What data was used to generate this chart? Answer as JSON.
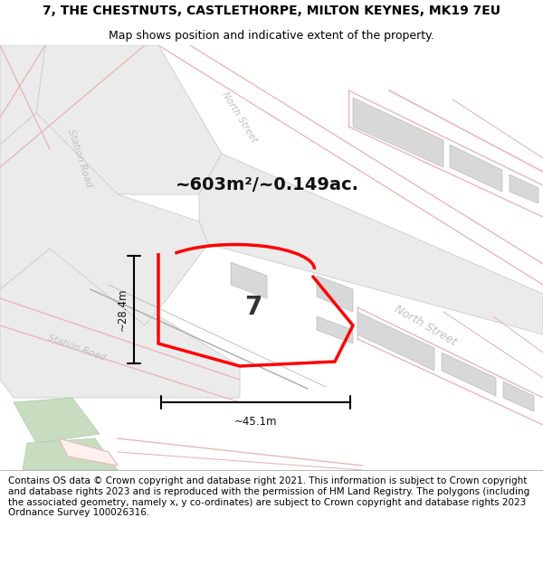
{
  "title_line1": "7, THE CHESTNUTS, CASTLETHORPE, MILTON KEYNES, MK19 7EU",
  "title_line2": "Map shows position and indicative extent of the property.",
  "footer_text": "Contains OS data © Crown copyright and database right 2021. This information is subject to Crown copyright and database rights 2023 and is reproduced with the permission of HM Land Registry. The polygons (including the associated geometry, namely x, y co-ordinates) are subject to Crown copyright and database rights 2023 Ordnance Survey 100026316.",
  "area_label": "~603m²/~0.149ac.",
  "number_label": "7",
  "width_label": "~45.1m",
  "height_label": "~28.4m",
  "map_bg": "#f9f9f9",
  "road_fill": "#ebebeb",
  "road_edge": "#cccccc",
  "pink_line": "#e8b8b8",
  "property_color": "#ff0000",
  "gray_bldg": "#d8d8d8",
  "green_fill": "#c8ddc0",
  "street_color": "#c0c0c0",
  "title_fontsize": 10,
  "subtitle_fontsize": 9,
  "footer_fontsize": 7.5,
  "area_fontsize": 14,
  "dim_fontsize": 8.5,
  "number_fontsize": 20
}
